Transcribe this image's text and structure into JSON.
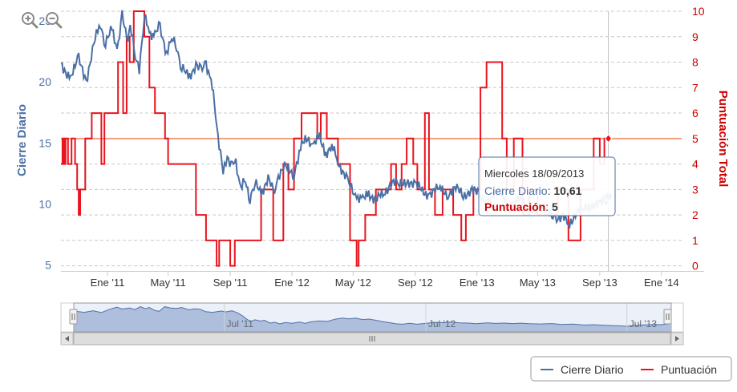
{
  "chart_data": {
    "type": "line",
    "x_ticks": [
      "Ene '11",
      "May '11",
      "Sep '11",
      "Ene '12",
      "May '12",
      "Sep '12",
      "Ene '13",
      "May '13",
      "Sep '13",
      "Ene '14"
    ],
    "y_left": {
      "label": "Cierre Diario",
      "ticks": [
        5,
        10,
        15,
        20,
        25
      ],
      "range": [
        4.5,
        25.8
      ]
    },
    "y_right": {
      "label": "Puntuación Total",
      "ticks": [
        0,
        1,
        2,
        3,
        4,
        5,
        6,
        7,
        8,
        9,
        10
      ],
      "range": [
        -0.2,
        10
      ]
    },
    "x_range": [
      "2010-10-01",
      "2014-02-10"
    ],
    "threshold": {
      "value": 5,
      "axis": "right",
      "color": "#f0a080"
    },
    "series": [
      {
        "name": "Cierre Diario",
        "axis": "left",
        "color": "#4a6fa5",
        "points": [
          [
            "2010-10-01",
            21.5
          ],
          [
            "2010-10-20",
            20.4
          ],
          [
            "2010-11-05",
            21.8
          ],
          [
            "2010-11-20",
            20.2
          ],
          [
            "2010-12-05",
            23.0
          ],
          [
            "2010-12-18",
            24.8
          ],
          [
            "2010-12-28",
            23.2
          ],
          [
            "2011-01-10",
            24.2
          ],
          [
            "2011-01-20",
            22.8
          ],
          [
            "2011-01-30",
            25.3
          ],
          [
            "2011-02-08",
            23.5
          ],
          [
            "2011-02-15",
            24.6
          ],
          [
            "2011-02-25",
            22.0
          ],
          [
            "2011-03-05",
            21.2
          ],
          [
            "2011-03-15",
            25.2
          ],
          [
            "2011-03-25",
            24.2
          ],
          [
            "2011-04-05",
            23.8
          ],
          [
            "2011-04-15",
            24.5
          ],
          [
            "2011-04-28",
            22.5
          ],
          [
            "2011-05-08",
            23.4
          ],
          [
            "2011-05-18",
            23.1
          ],
          [
            "2011-05-28",
            21.0
          ],
          [
            "2011-06-10",
            20.4
          ],
          [
            "2011-06-25",
            21.5
          ],
          [
            "2011-07-05",
            20.8
          ],
          [
            "2011-07-15",
            21.7
          ],
          [
            "2011-07-25",
            20.0
          ],
          [
            "2011-08-03",
            17.5
          ],
          [
            "2011-08-10",
            14.8
          ],
          [
            "2011-08-18",
            12.5
          ],
          [
            "2011-08-26",
            14.0
          ],
          [
            "2011-09-05",
            12.9
          ],
          [
            "2011-09-12",
            13.6
          ],
          [
            "2011-09-22",
            11.2
          ],
          [
            "2011-10-01",
            11.9
          ],
          [
            "2011-10-10",
            10.5
          ],
          [
            "2011-10-20",
            11.6
          ],
          [
            "2011-11-01",
            11.0
          ],
          [
            "2011-11-15",
            12.0
          ],
          [
            "2011-11-25",
            10.9
          ],
          [
            "2011-12-05",
            12.2
          ],
          [
            "2011-12-20",
            13.0
          ],
          [
            "2012-01-05",
            12.6
          ],
          [
            "2012-01-18",
            14.5
          ],
          [
            "2012-02-01",
            15.5
          ],
          [
            "2012-02-12",
            14.8
          ],
          [
            "2012-02-25",
            15.4
          ],
          [
            "2012-03-08",
            14.2
          ],
          [
            "2012-03-20",
            14.6
          ],
          [
            "2012-04-01",
            13.6
          ],
          [
            "2012-04-15",
            12.3
          ],
          [
            "2012-04-25",
            11.6
          ],
          [
            "2012-05-08",
            10.6
          ],
          [
            "2012-05-20",
            10.2
          ],
          [
            "2012-06-01",
            11.0
          ],
          [
            "2012-06-15",
            10.2
          ],
          [
            "2012-07-01",
            10.9
          ],
          [
            "2012-07-15",
            11.8
          ],
          [
            "2012-08-01",
            11.5
          ],
          [
            "2012-08-15",
            12.0
          ],
          [
            "2012-09-01",
            11.4
          ],
          [
            "2012-09-15",
            11.2
          ],
          [
            "2012-10-01",
            10.7
          ],
          [
            "2012-10-20",
            11.3
          ],
          [
            "2012-11-05",
            10.9
          ],
          [
            "2012-11-20",
            11.2
          ],
          [
            "2012-12-05",
            10.8
          ],
          [
            "2012-12-20",
            11.1
          ],
          [
            "2013-01-05",
            10.7
          ],
          [
            "2013-01-25",
            10.4
          ],
          [
            "2013-02-15",
            10.8
          ],
          [
            "2013-03-05",
            10.0
          ],
          [
            "2013-03-25",
            10.3
          ],
          [
            "2013-04-15",
            9.5
          ],
          [
            "2013-05-01",
            9.8
          ],
          [
            "2013-05-20",
            9.3
          ],
          [
            "2013-06-05",
            9.0
          ],
          [
            "2013-06-20",
            8.8
          ],
          [
            "2013-07-01",
            8.4
          ],
          [
            "2013-07-15",
            9.2
          ],
          [
            "2013-08-01",
            9.6
          ],
          [
            "2013-08-15",
            10.0
          ],
          [
            "2013-09-01",
            9.8
          ],
          [
            "2013-09-10",
            10.2
          ],
          [
            "2013-09-18",
            10.61
          ]
        ]
      },
      {
        "name": "Puntuación",
        "axis": "right",
        "color": "#e8141e",
        "step": true,
        "points": [
          [
            "2010-10-01",
            4
          ],
          [
            "2010-10-04",
            5
          ],
          [
            "2010-10-07",
            4
          ],
          [
            "2010-10-10",
            5
          ],
          [
            "2010-10-15",
            4
          ],
          [
            "2010-10-22",
            5
          ],
          [
            "2010-10-29",
            4
          ],
          [
            "2010-11-02",
            3
          ],
          [
            "2010-11-05",
            2
          ],
          [
            "2010-11-08",
            3
          ],
          [
            "2010-11-18",
            5
          ],
          [
            "2010-12-01",
            6
          ],
          [
            "2010-12-20",
            4
          ],
          [
            "2010-12-26",
            6
          ],
          [
            "2011-01-22",
            8
          ],
          [
            "2011-02-01",
            6
          ],
          [
            "2011-02-08",
            9
          ],
          [
            "2011-02-14",
            8
          ],
          [
            "2011-02-22",
            10
          ],
          [
            "2011-03-15",
            9
          ],
          [
            "2011-03-25",
            7
          ],
          [
            "2011-04-05",
            6
          ],
          [
            "2011-04-25",
            5
          ],
          [
            "2011-05-01",
            4
          ],
          [
            "2011-06-25",
            2
          ],
          [
            "2011-07-15",
            1
          ],
          [
            "2011-08-05",
            0
          ],
          [
            "2011-08-10",
            1
          ],
          [
            "2011-08-20",
            1
          ],
          [
            "2011-09-01",
            0
          ],
          [
            "2011-09-10",
            1
          ],
          [
            "2011-09-20",
            1
          ],
          [
            "2011-10-15",
            1
          ],
          [
            "2011-11-01",
            3
          ],
          [
            "2011-11-25",
            1
          ],
          [
            "2011-12-05",
            1
          ],
          [
            "2011-12-15",
            4
          ],
          [
            "2011-12-25",
            3
          ],
          [
            "2012-01-05",
            5
          ],
          [
            "2012-01-20",
            6
          ],
          [
            "2012-02-20",
            5
          ],
          [
            "2012-02-27",
            6
          ],
          [
            "2012-03-10",
            5
          ],
          [
            "2012-04-01",
            4
          ],
          [
            "2012-04-25",
            1
          ],
          [
            "2012-05-08",
            0
          ],
          [
            "2012-05-12",
            1
          ],
          [
            "2012-05-25",
            2
          ],
          [
            "2012-06-15",
            3
          ],
          [
            "2012-07-15",
            4
          ],
          [
            "2012-07-25",
            3
          ],
          [
            "2012-08-05",
            4
          ],
          [
            "2012-08-15",
            5
          ],
          [
            "2012-08-28",
            4
          ],
          [
            "2012-09-05",
            3
          ],
          [
            "2012-09-20",
            6
          ],
          [
            "2012-09-28",
            3
          ],
          [
            "2012-10-10",
            2
          ],
          [
            "2012-10-25",
            3
          ],
          [
            "2012-11-15",
            2
          ],
          [
            "2012-12-01",
            1
          ],
          [
            "2012-12-10",
            2
          ],
          [
            "2012-12-25",
            3
          ],
          [
            "2013-01-08",
            7
          ],
          [
            "2013-01-20",
            8
          ],
          [
            "2013-02-20",
            5
          ],
          [
            "2013-03-01",
            3
          ],
          [
            "2013-03-15",
            5
          ],
          [
            "2013-04-01",
            2
          ],
          [
            "2013-04-15",
            3
          ],
          [
            "2013-05-01",
            2
          ],
          [
            "2013-06-10",
            3
          ],
          [
            "2013-07-01",
            1
          ],
          [
            "2013-07-25",
            3
          ],
          [
            "2013-08-20",
            5
          ],
          [
            "2013-09-01",
            4
          ],
          [
            "2013-09-10",
            5
          ],
          [
            "2013-09-18",
            5
          ]
        ]
      }
    ],
    "selected_point_date": "2013-09-18",
    "tooltip": {
      "date": "Miercoles 18/09/2013",
      "line1_label": "Cierre Diario",
      "line1_value": "10,61",
      "line2_label": "Puntuación",
      "line2_value": "5"
    },
    "navigator": {
      "ticks": [
        {
          "label": "Jul '11",
          "date": "2011-07-01"
        },
        {
          "label": "Jul '12",
          "date": "2012-07-01"
        },
        {
          "label": "Jul '13",
          "date": "2013-07-01"
        }
      ],
      "fill_color": "#b8c8e0",
      "line_color": "#4a6fa5"
    },
    "legend": {
      "position": "bottom-right",
      "items": [
        {
          "label": "Cierre Diario",
          "color": "#4a6fa5"
        },
        {
          "label": "Puntuación",
          "color": "#e8141e"
        }
      ]
    },
    "grid": true
  },
  "zoom_controls": {
    "zoom_in_icon": "zoom-in-icon",
    "zoom_out_icon": "zoom-out-icon"
  },
  "scrollbar": {
    "handle_icon": "grip-icon"
  },
  "colors": {
    "left_axis": "#4a6fa5",
    "right_axis": "#cc0000",
    "tooltip_border": "#4a6fa5",
    "tooltip_value": "#333333"
  }
}
